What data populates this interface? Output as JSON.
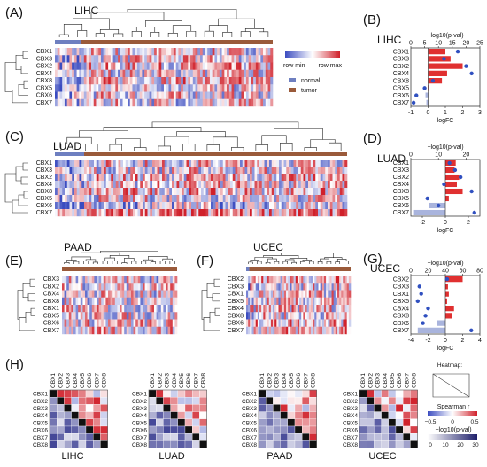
{
  "panels": {
    "A": {
      "letter": "(A)",
      "title": "LIHC"
    },
    "B": {
      "letter": "(B)",
      "title": "LIHC"
    },
    "C": {
      "letter": "(C)",
      "title": "LUAD"
    },
    "D": {
      "letter": "(D)",
      "title": "LUAD"
    },
    "E": {
      "letter": "(E)",
      "title": "PAAD"
    },
    "F": {
      "letter": "(F)",
      "title": "UCEC"
    },
    "G": {
      "letter": "(G)",
      "title": "UCEC"
    },
    "H": {
      "letter": "(H)"
    }
  },
  "heatmap_legend": {
    "min_label": "row min",
    "max_label": "row max",
    "normal_label": "normal",
    "tumor_label": "tumor"
  },
  "colors": {
    "normal": "#6e7fc0",
    "tumor": "#9a5a3a",
    "low": "#3b4cc0",
    "high": "#d0202a",
    "bar": "#e03030",
    "bar_neg": "#a9b4dd",
    "dot": "#3050c0"
  },
  "h_legend": {
    "heatmap_label": "Heatmap:",
    "spearman_label": "Spearman r",
    "pval_label": "−log10(p-val)",
    "spearman_ticks": [
      "−0.5",
      "0",
      "0.5"
    ],
    "pval_ticks": [
      "0",
      "10",
      "20",
      "30"
    ]
  },
  "chart_data": [
    {
      "id": "B",
      "type": "bar",
      "title": "LIHC",
      "categories": [
        "CBX1",
        "CBX3",
        "CBX2",
        "CBX4",
        "CBX8",
        "CBX5",
        "CBX6",
        "CBX7"
      ],
      "series": [
        {
          "name": "logFC",
          "values": [
            1.0,
            1.3,
            2.0,
            1.1,
            0.8,
            0.05,
            -0.15,
            -0.1
          ]
        }
      ],
      "dots": [
        17,
        12,
        20,
        22,
        8,
        5,
        2,
        1
      ],
      "xlabel": "logFC",
      "x2label": "−log10(p-val)",
      "xlim": [
        -1,
        3
      ],
      "xticks": [
        "-1",
        "0",
        "1",
        "2",
        "3"
      ],
      "x2lim": [
        0,
        25
      ],
      "x2ticks": [
        "0",
        "5",
        "10",
        "15",
        "20",
        "25"
      ]
    },
    {
      "id": "D",
      "type": "bar",
      "title": "LUAD",
      "categories": [
        "CBX1",
        "CBX3",
        "CBX2",
        "CBX4",
        "CBX8",
        "CBX5",
        "CBX6",
        "CBX7"
      ],
      "series": [
        {
          "name": "logFC",
          "values": [
            0.9,
            0.8,
            1.2,
            1.0,
            1.5,
            0.3,
            -1.4,
            -2.8
          ]
        }
      ],
      "dots": [
        14,
        16,
        18,
        12,
        22,
        6,
        10,
        23
      ],
      "xlabel": "logFC",
      "x2label": "−log10(p-val)",
      "xlim": [
        -3,
        3
      ],
      "xticks": [
        "-2",
        "0",
        "2"
      ],
      "x2lim": [
        0,
        25
      ],
      "x2ticks": [
        "0",
        "10",
        "20"
      ]
    },
    {
      "id": "G",
      "type": "bar",
      "title": "UCEC",
      "categories": [
        "CBX2",
        "CBX3",
        "CBX1",
        "CBX5",
        "CBX4",
        "CBX8",
        "CBX6",
        "CBX7"
      ],
      "series": [
        {
          "name": "logFC",
          "values": [
            2.0,
            0.3,
            0.4,
            0.2,
            1.0,
            0.8,
            -1.0,
            -3.2
          ]
        }
      ],
      "dots": [
        42,
        10,
        12,
        8,
        20,
        17,
        14,
        70
      ],
      "xlabel": "logFC",
      "x2label": "−log10(p-val)",
      "xlim": [
        -4,
        4
      ],
      "xticks": [
        "-4",
        "-2",
        "0",
        "2",
        "4"
      ],
      "x2lim": [
        0,
        80
      ],
      "x2ticks": [
        "0",
        "20",
        "40",
        "60",
        "80"
      ]
    }
  ],
  "heatmaps": {
    "A": {
      "rows": [
        "CBX1",
        "CBX3",
        "CBX2",
        "CBX4",
        "CBX8",
        "CBX5",
        "CBX6",
        "CBX7"
      ]
    },
    "C": {
      "rows": [
        "CBX1",
        "CBX3",
        "CBX2",
        "CBX4",
        "CBX8",
        "CBX5",
        "CBX6",
        "CBX7"
      ]
    },
    "E": {
      "rows": [
        "CBX3",
        "CBX2",
        "CBX4",
        "CBX8",
        "CBX1",
        "CBX5",
        "CBX6",
        "CBX7"
      ]
    },
    "F": {
      "rows": [
        "CBX2",
        "CBX3",
        "CBX1",
        "CBX5",
        "CBX4",
        "CBX8",
        "CBX6",
        "CBX7"
      ]
    }
  },
  "corr": {
    "genes": [
      "CBX1",
      "CBX2",
      "CBX3",
      "CBX4",
      "CBX5",
      "CBX6",
      "CBX7",
      "CBX8"
    ],
    "names": [
      "LIHC",
      "LUAD",
      "PAAD",
      "UCEC"
    ]
  }
}
